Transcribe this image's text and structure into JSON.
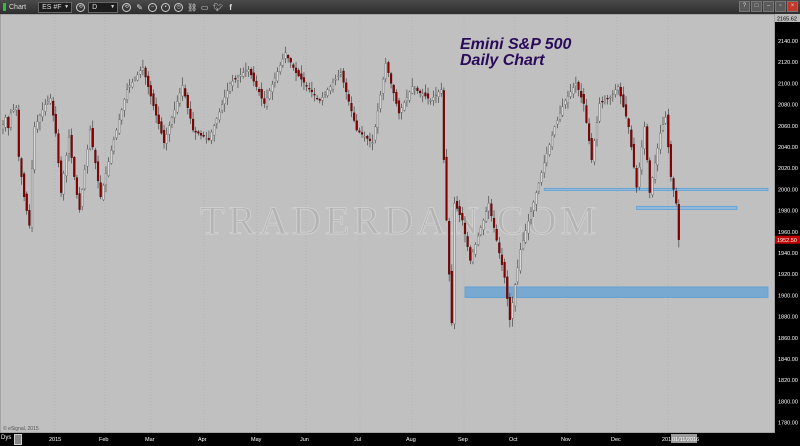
{
  "toolbar": {
    "title": "Chart",
    "symbol": "ES #F",
    "interval": "D",
    "icons": [
      "link-icon",
      "pencil-icon",
      "zoom-icon",
      "target-icon",
      "clock-icon",
      "chain-icon",
      "comment-icon",
      "twitter-icon",
      "facebook-icon"
    ],
    "window_buttons": [
      "?",
      "□",
      "–",
      "▫",
      "×"
    ]
  },
  "bottom": {
    "period_button": "Dys",
    "copyright": "© eSignal, 2015",
    "cursor_date": "01/11/2016"
  },
  "annotation": {
    "line1": "Emini S&P 500",
    "line2": "Daily Chart",
    "color": "#2a0a5a"
  },
  "watermark": "TRADERDAN.COM",
  "chart_data": {
    "type": "candlestick",
    "title": "Emini S&P 500 Daily Chart",
    "ylim": [
      1770,
      2170
    ],
    "y_ticks": [
      "2140.00",
      "2120.00",
      "2100.00",
      "2080.00",
      "2060.00",
      "2040.00",
      "2020.00",
      "2000.00",
      "1980.00",
      "1960.00",
      "1940.00",
      "1920.00",
      "1900.00",
      "1880.00",
      "1860.00",
      "1840.00",
      "1820.00",
      "1800.00",
      "1780.00"
    ],
    "x_ticks": [
      "2015",
      "Feb",
      "Mar",
      "Apr",
      "May",
      "Jun",
      "Jul",
      "Aug",
      "Sep",
      "Oct",
      "Nov",
      "Dec",
      "2016"
    ],
    "last_price": "1952.50",
    "high_price": "2165.62",
    "grid": "vertical dotted at month boundaries",
    "colors": {
      "down": "#8b0000",
      "up": "#d8d8d8",
      "zone": "#5aa0d8",
      "background": "#c0c0c0",
      "last_price_tag": "#c00000"
    },
    "closes": [
      2061,
      2068,
      2058,
      2072,
      2075,
      2077,
      2031,
      2012,
      1993,
      1980,
      1966,
      2020,
      2059,
      2064,
      2070,
      2075,
      2080,
      2083,
      2086,
      2070,
      2053,
      2025,
      1997,
      2015,
      2032,
      2049,
      2030,
      2012,
      1995,
      1981,
      2000,
      2019,
      2038,
      2056,
      2040,
      2025,
      2008,
      1993,
      2004,
      2015,
      2026,
      2037,
      2047,
      2056,
      2066,
      2075,
      2085,
      2094,
      2098,
      2101,
      2105,
      2108,
      2112,
      2115,
      2106,
      2097,
      2088,
      2079,
      2070,
      2062,
      2053,
      2044,
      2052,
      2060,
      2068,
      2075,
      2083,
      2091,
      2098,
      2088,
      2077,
      2067,
      2056,
      2054,
      2053,
      2051,
      2050,
      2048,
      2047,
      2054,
      2060,
      2067,
      2073,
      2080,
      2087,
      2093,
      2100,
      2102,
      2104,
      2106,
      2108,
      2110,
      2112,
      2113,
      2108,
      2102,
      2097,
      2092,
      2086,
      2081,
      2087,
      2093,
      2099,
      2105,
      2111,
      2117,
      2123,
      2129,
      2124,
      2120,
      2115,
      2110,
      2107,
      2104,
      2101,
      2098,
      2095,
      2092,
      2089,
      2086,
      2084,
      2087,
      2091,
      2094,
      2097,
      2101,
      2104,
      2107,
      2110,
      2101,
      2092,
      2083,
      2074,
      2065,
      2056,
      2054,
      2052,
      2050,
      2048,
      2046,
      2044,
      2059,
      2074,
      2089,
      2104,
      2119,
      2110,
      2100,
      2091,
      2081,
      2072,
      2077,
      2082,
      2087,
      2092,
      2097,
      2095,
      2093,
      2091,
      2090,
      2088,
      2086,
      2084,
      2087,
      2089,
      2092,
      2094,
      2028,
      1971,
      1920,
      1874,
      1987,
      1982,
      1976,
      1971,
      1958,
      1946,
      1933,
      1941,
      1948,
      1956,
      1964,
      1971,
      1979,
      1987,
      1975,
      1964,
      1952,
      1940,
      1929,
      1917,
      1897,
      1877,
      1893,
      1910,
      1926,
      1943,
      1952,
      1961,
      1970,
      1979,
      1988,
      1997,
      2006,
      2016,
      2025,
      2034,
      2042,
      2051,
      2059,
      2065,
      2072,
      2078,
      2084,
      2088,
      2092,
      2096,
      2100,
      2094,
      2087,
      2081,
      2063,
      2046,
      2028,
      2046,
      2063,
      2081,
      2083,
      2084,
      2086,
      2087,
      2090,
      2094,
      2097,
      2088,
      2078,
      2069,
      2059,
      2040,
      2021,
      2002,
      2021,
      2040,
      2059,
      2028,
      1997,
      2011,
      2025,
      2039,
      2053,
      2061,
      2068,
      2040,
      2012,
      2000,
      1987,
      1952.5
    ],
    "zones": [
      {
        "type": "line",
        "price_low": 1999,
        "price_high": 2001,
        "from_bar": 205,
        "to_bar": 300
      },
      {
        "type": "box",
        "price_low": 1981,
        "price_high": 1984,
        "from_bar": 240,
        "to_bar": 278
      },
      {
        "type": "box",
        "price_low": 1898,
        "price_high": 1908,
        "from_bar": 175,
        "to_bar": 290
      }
    ]
  }
}
